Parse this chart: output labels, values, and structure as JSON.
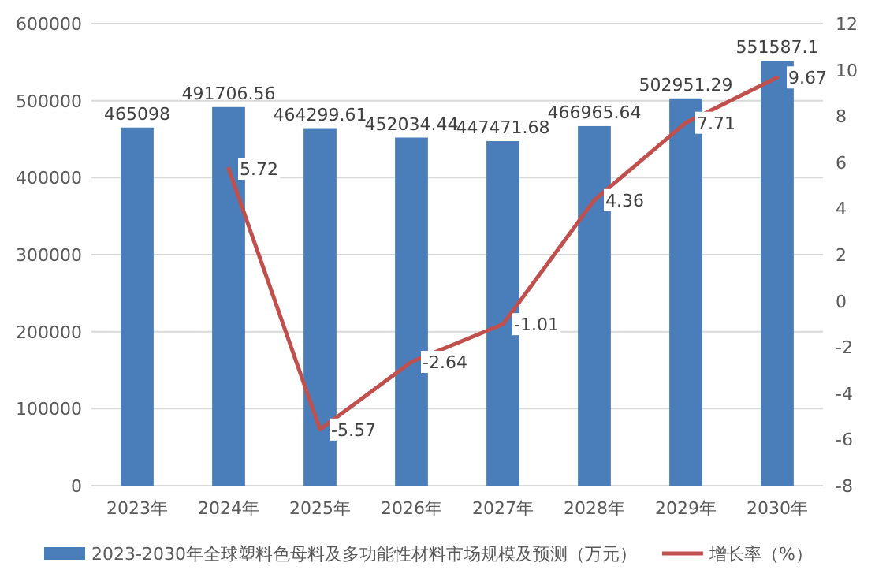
{
  "chart_data": {
    "type": "bar",
    "categories": [
      "2023年",
      "2024年",
      "2025年",
      "2026年",
      "2027年",
      "2028年",
      "2029年",
      "2030年"
    ],
    "series": [
      {
        "name": "2023-2030年全球塑料色母料及多功能性材料市场规模及预测（万元）",
        "color": "#4a7ebb",
        "values": [
          465098,
          491706.56,
          464299.61,
          452034.44,
          447471.68,
          466965.64,
          502951.29,
          551587.1
        ]
      },
      {
        "name": "增长率（%）",
        "type": "line",
        "axis": "y2",
        "color": "#c0504d",
        "values": [
          null,
          5.72,
          -5.57,
          -2.64,
          -1.01,
          4.36,
          7.71,
          9.67
        ]
      }
    ],
    "ylim": [
      0,
      600000
    ],
    "yticks": [
      0,
      100000,
      200000,
      300000,
      400000,
      500000,
      600000
    ],
    "y2lim": [
      -8,
      12
    ],
    "y2ticks": [
      -8,
      -6,
      -4,
      -2,
      0,
      2,
      4,
      6,
      8,
      10,
      12
    ],
    "grid": "y",
    "legend": "bottom",
    "data_labels": true
  }
}
